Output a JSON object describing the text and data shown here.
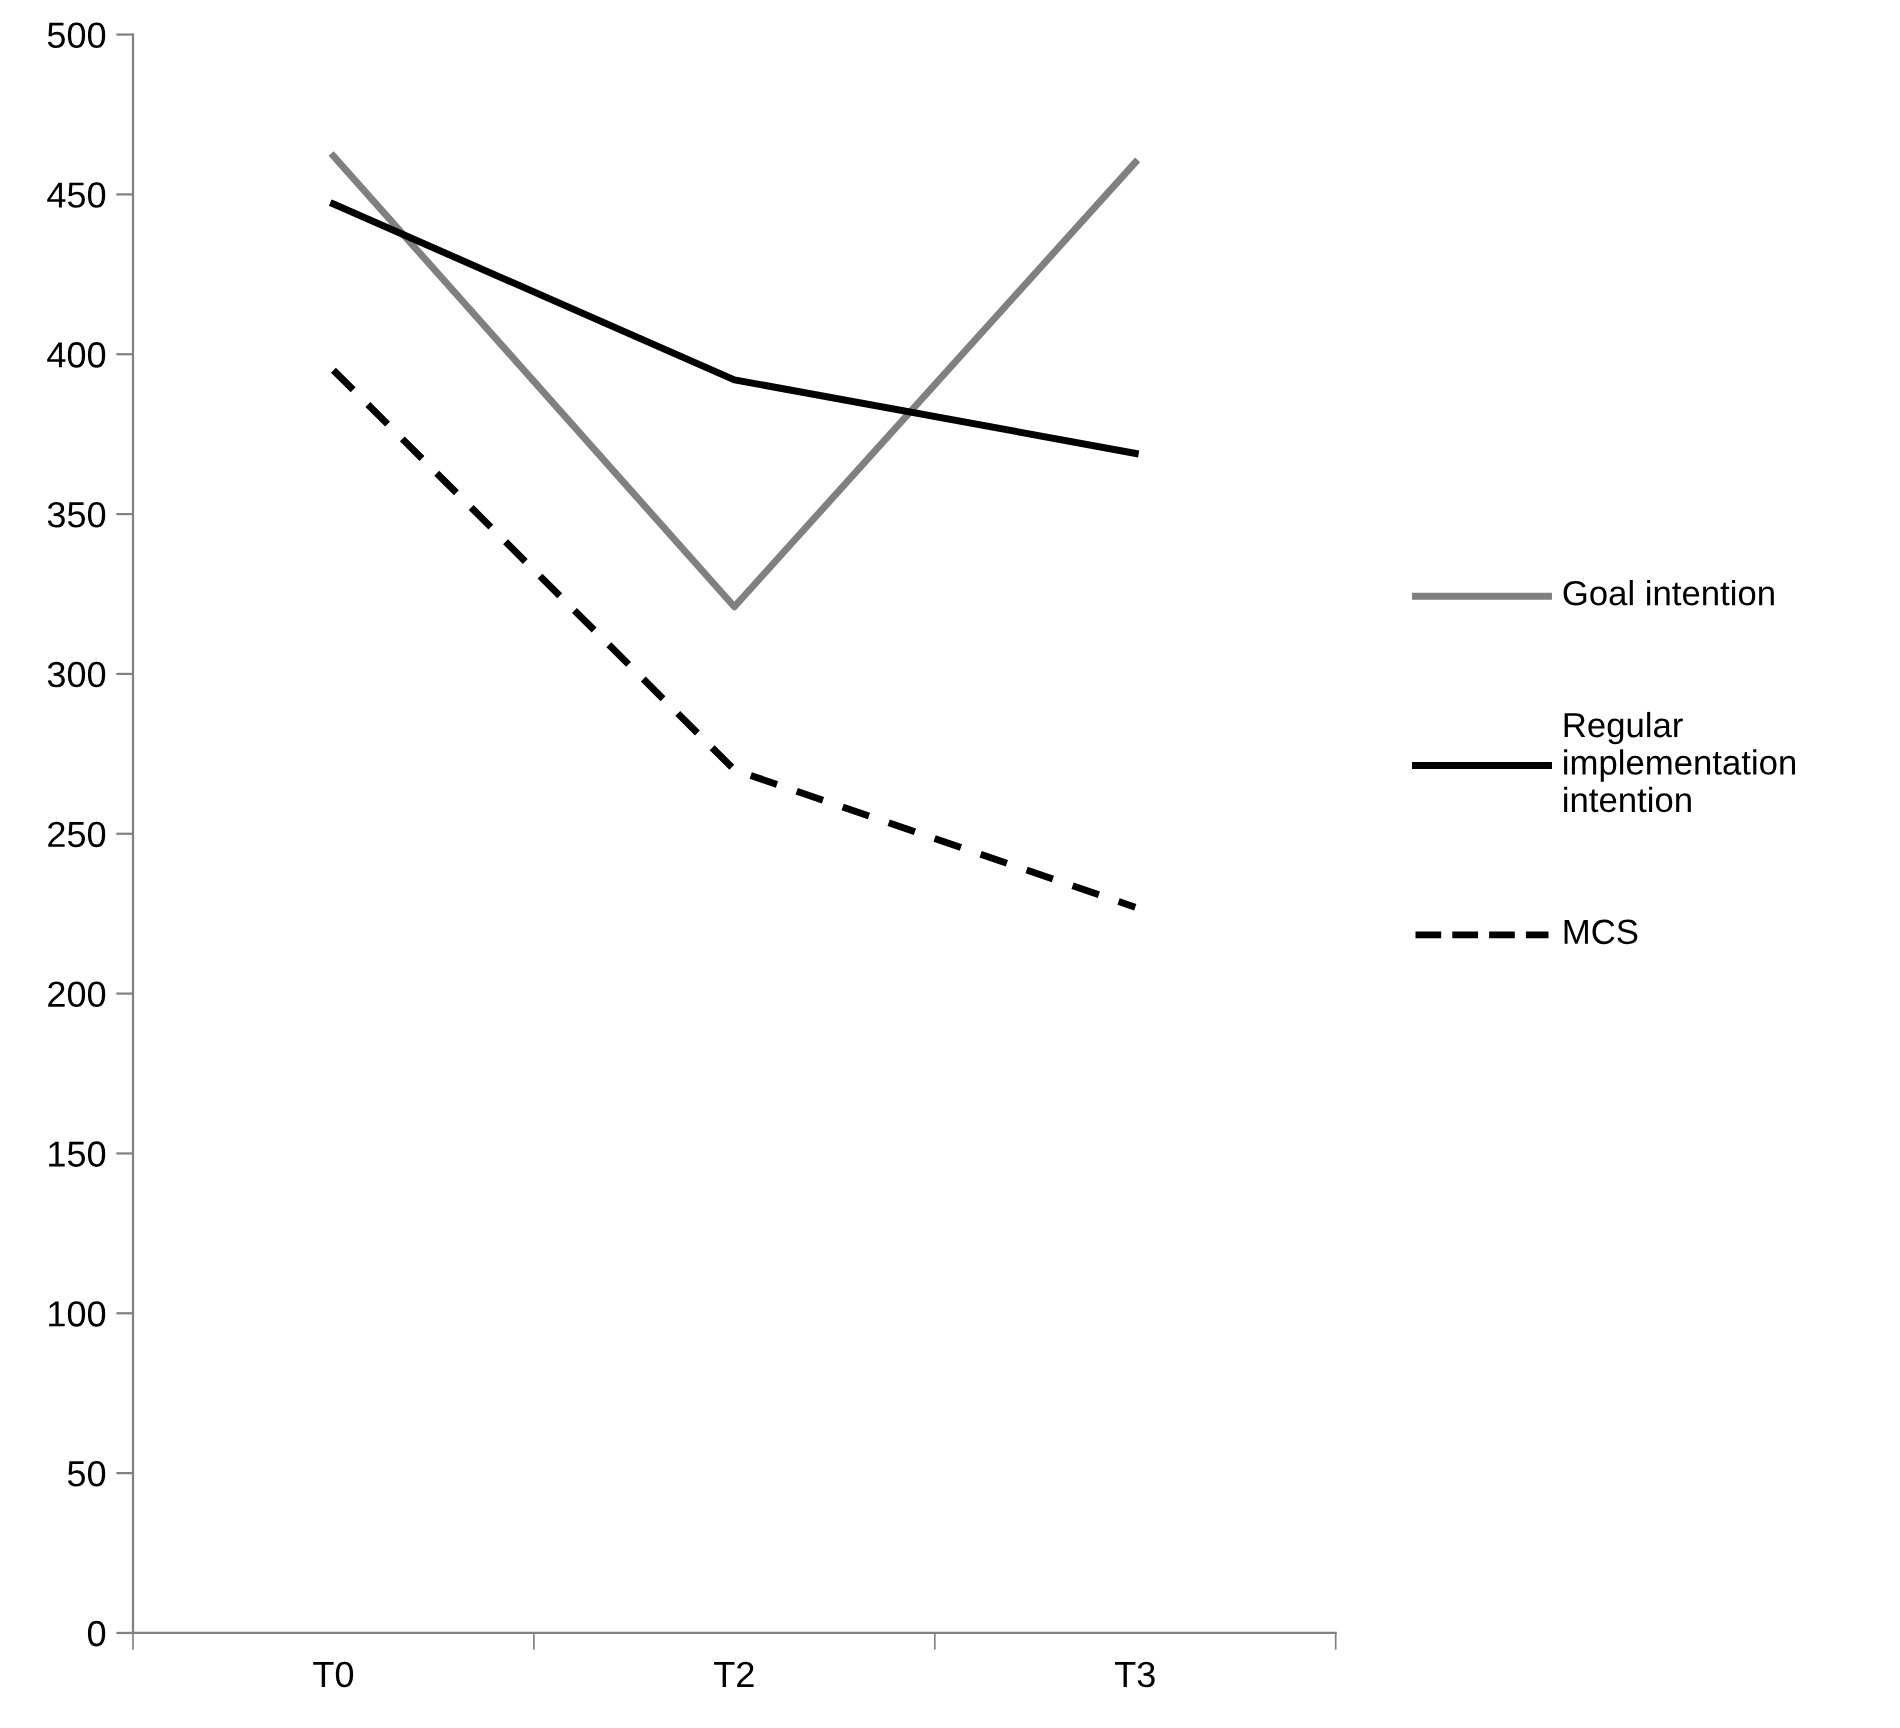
{
  "chart_data": {
    "type": "line",
    "categories": [
      "T0",
      "T2",
      "T3"
    ],
    "series": [
      {
        "name": "Goal intention",
        "color": "#808080",
        "line_style": "solid",
        "values": [
          462,
          321,
          460
        ]
      },
      {
        "name": "Regular implementation intention",
        "color": "#000000",
        "line_style": "solid",
        "values": [
          447,
          392,
          369
        ]
      },
      {
        "name": "MCS",
        "color": "#000000",
        "line_style": "dashed",
        "values": [
          395,
          270,
          227
        ]
      }
    ],
    "ylim": [
      0,
      500
    ],
    "yticks": [
      0,
      50,
      100,
      150,
      200,
      250,
      300,
      350,
      400,
      450,
      500
    ],
    "grid": false,
    "legend": "right",
    "marker": "none"
  }
}
